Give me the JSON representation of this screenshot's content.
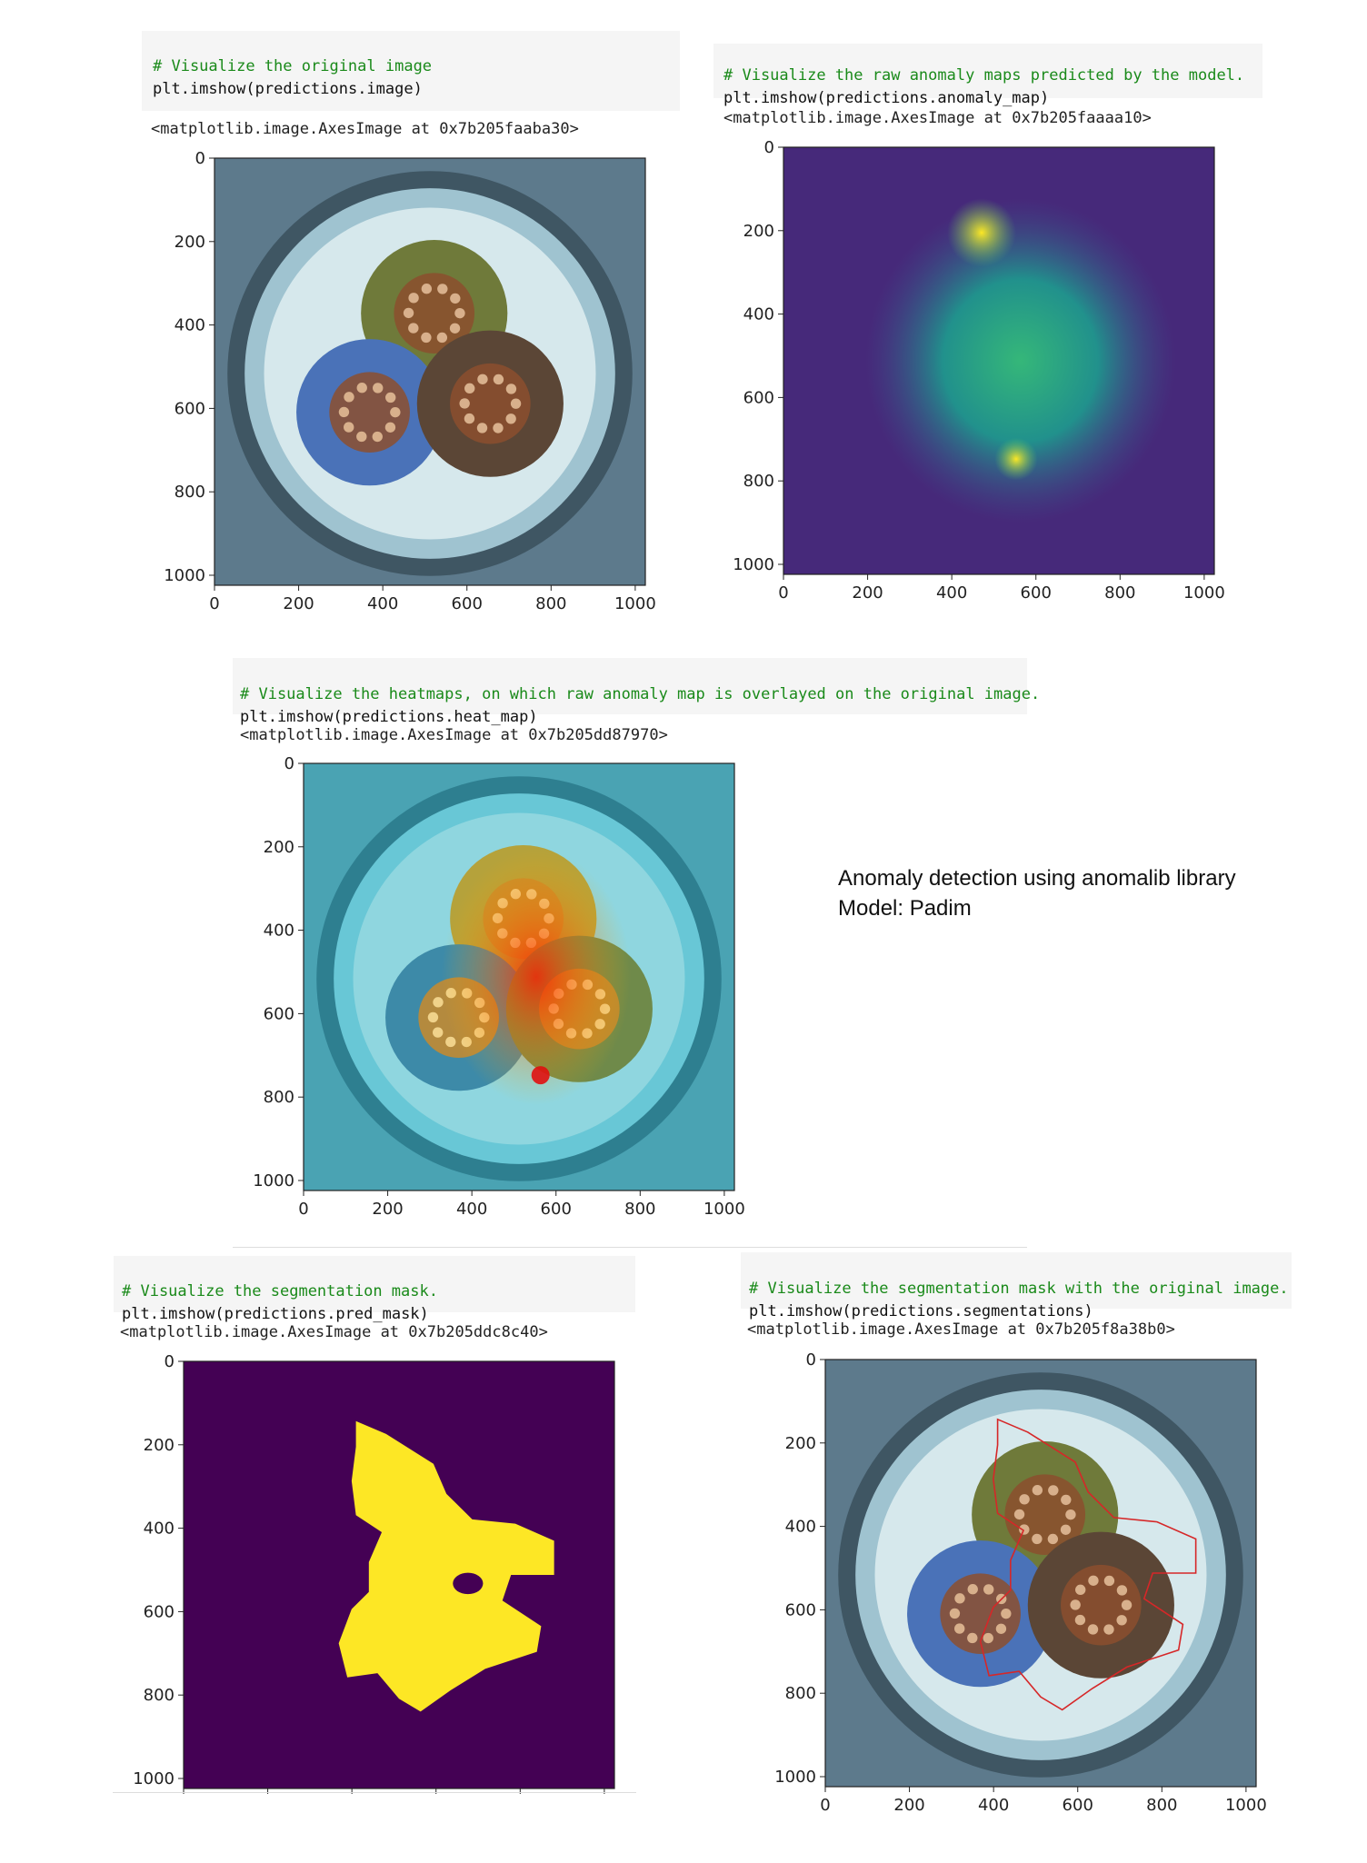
{
  "cells": [
    {
      "comment": "# Visualize the original image",
      "code_fn": "plt.imshow",
      "code_arg": "predictions.image",
      "output": "<matplotlib.image.AxesImage at 0x7b205faaba30>"
    },
    {
      "comment": "# Visualize the raw anomaly maps predicted by the model.",
      "code_fn": "plt.imshow",
      "code_arg": "predictions.anomaly_map",
      "output": "<matplotlib.image.AxesImage at 0x7b205faaaa10>"
    },
    {
      "comment": "# Visualize the heatmaps, on which raw anomaly map is overlayed on the original image.",
      "code_fn": "plt.imshow",
      "code_arg": "predictions.heat_map",
      "output": "<matplotlib.image.AxesImage at 0x7b205dd87970>"
    },
    {
      "comment": "# Visualize the segmentation mask.",
      "code_fn": "plt.imshow",
      "code_arg": "predictions.pred_mask",
      "output": "<matplotlib.image.AxesImage at 0x7b205ddc8c40>"
    },
    {
      "comment": "# Visualize the segmentation mask with the original image.",
      "code_fn": "plt.imshow",
      "code_arg": "predictions.segmentations",
      "output": "<matplotlib.image.AxesImage at 0x7b205f8a38b0>"
    }
  ],
  "note": {
    "line1": "Anomaly detection using anomalib library",
    "line2": "Model: Padim"
  },
  "ticks": {
    "x": [
      "0",
      "200",
      "400",
      "600",
      "800",
      "1000"
    ],
    "y": [
      "0",
      "200",
      "400",
      "600",
      "800",
      "1000"
    ]
  },
  "colors": {
    "comment": "#1a8a1a",
    "code_bg": "#f5f5f5",
    "viridis_dark": "#440154",
    "viridis_yellow": "#fde725",
    "seg_contour": "#d62728"
  }
}
